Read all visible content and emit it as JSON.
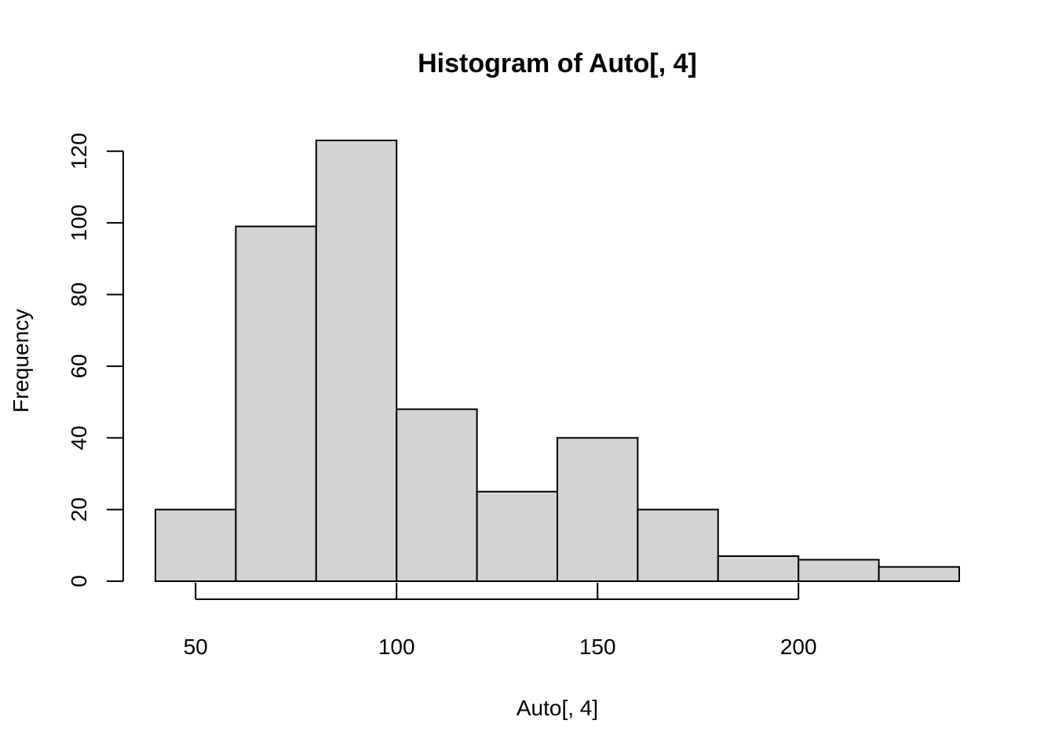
{
  "chart_data": {
    "type": "bar",
    "title": "Histogram of Auto[, 4]",
    "xlabel": "Auto[, 4]",
    "ylabel": "Frequency",
    "bins": [
      {
        "from": 40,
        "to": 60,
        "count": 20
      },
      {
        "from": 60,
        "to": 80,
        "count": 99
      },
      {
        "from": 80,
        "to": 100,
        "count": 123
      },
      {
        "from": 100,
        "to": 120,
        "count": 48
      },
      {
        "from": 120,
        "to": 140,
        "count": 25
      },
      {
        "from": 140,
        "to": 160,
        "count": 40
      },
      {
        "from": 160,
        "to": 180,
        "count": 20
      },
      {
        "from": 180,
        "to": 200,
        "count": 7
      },
      {
        "from": 200,
        "to": 220,
        "count": 6
      },
      {
        "from": 220,
        "to": 240,
        "count": 4
      }
    ],
    "xlim": [
      40,
      240
    ],
    "ylim": [
      0,
      123
    ],
    "x_ticks": [
      50,
      100,
      150,
      200
    ],
    "y_ticks": [
      0,
      20,
      40,
      60,
      80,
      100,
      120
    ],
    "bar_color": "#d3d3d3",
    "grid": false
  }
}
